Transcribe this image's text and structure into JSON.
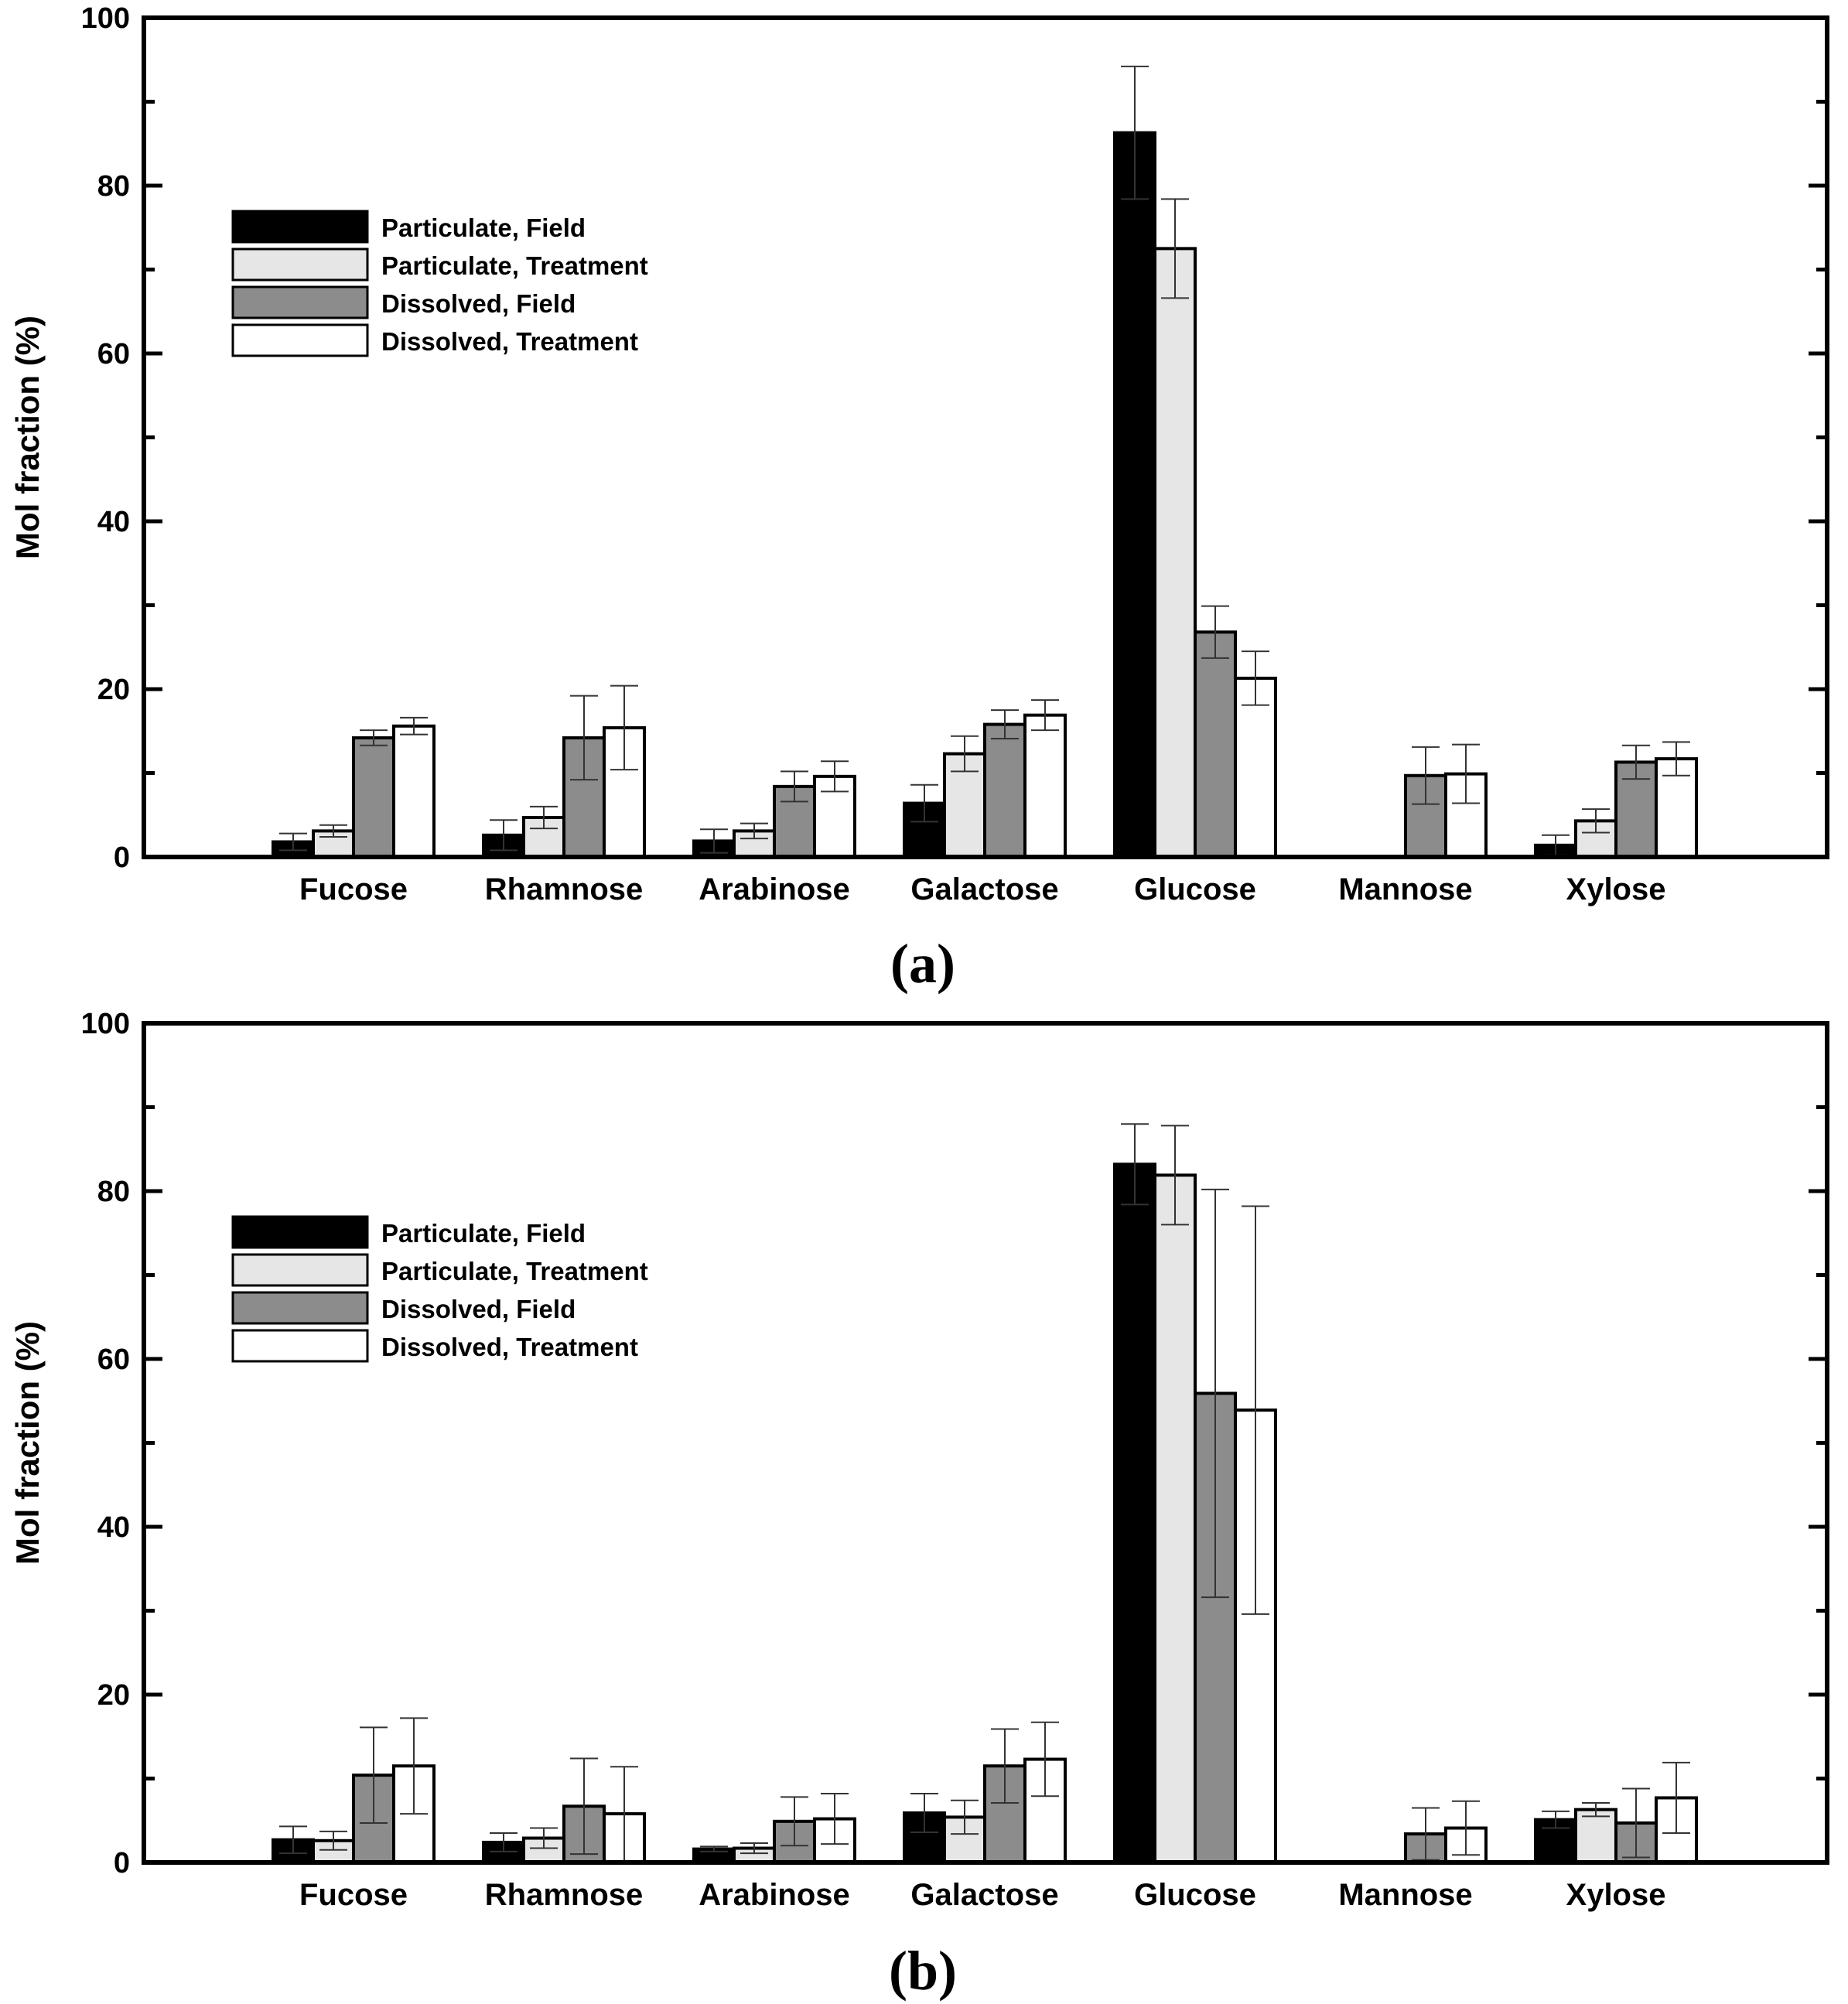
{
  "figure": {
    "legend": [
      {
        "label": "Particulate, Field",
        "color": "#000000"
      },
      {
        "label": "Particulate, Treatment",
        "color": "#e6e6e6"
      },
      {
        "label": "Dissolved, Field",
        "color": "#8c8c8c"
      },
      {
        "label": "Dissolved, Treatment",
        "color": "#ffffff"
      }
    ]
  },
  "chart_data": [
    {
      "type": "bar",
      "panel_label": "(a)",
      "ylabel": "Mol fraction (%)",
      "xlabel": "",
      "ylim": [
        0,
        100
      ],
      "yticks": [
        0,
        20,
        40,
        60,
        80,
        100
      ],
      "legend_position": "top-left",
      "categories": [
        "Fucose",
        "Rhamnose",
        "Arabinose",
        "Galactose",
        "Glucose",
        "Mannose",
        "Xylose"
      ],
      "series": [
        {
          "name": "Particulate, Field",
          "color": "#000000",
          "values": [
            1.8,
            2.6,
            1.9,
            6.4,
            86.3,
            0,
            1.4
          ],
          "errors": [
            1.0,
            1.8,
            1.4,
            2.2,
            7.9,
            0,
            1.2
          ]
        },
        {
          "name": "Particulate, Treatment",
          "color": "#e6e6e6",
          "values": [
            3.1,
            4.7,
            3.1,
            12.3,
            72.5,
            0,
            4.3
          ],
          "errors": [
            0.7,
            1.3,
            0.9,
            2.1,
            5.9,
            0,
            1.4
          ]
        },
        {
          "name": "Dissolved, Field",
          "color": "#8c8c8c",
          "values": [
            14.2,
            14.2,
            8.4,
            15.8,
            26.8,
            9.7,
            11.3
          ],
          "errors": [
            0.9,
            5.0,
            1.8,
            1.7,
            3.1,
            3.4,
            2.0
          ]
        },
        {
          "name": "Dissolved, Treatment",
          "color": "#ffffff",
          "values": [
            15.6,
            15.4,
            9.6,
            16.9,
            21.3,
            9.9,
            11.7
          ],
          "errors": [
            1.0,
            5.0,
            1.8,
            1.8,
            3.2,
            3.5,
            2.0
          ]
        }
      ]
    },
    {
      "type": "bar",
      "panel_label": "(b)",
      "ylabel": "Mol fraction (%)",
      "xlabel": "",
      "ylim": [
        0,
        100
      ],
      "yticks": [
        0,
        20,
        40,
        60,
        80,
        100
      ],
      "legend_position": "top-left",
      "categories": [
        "Fucose",
        "Rhamnose",
        "Arabinose",
        "Galactose",
        "Glucose",
        "Mannose",
        "Xylose"
      ],
      "series": [
        {
          "name": "Particulate, Field",
          "color": "#000000",
          "values": [
            2.7,
            2.4,
            1.6,
            5.9,
            83.2,
            0,
            5.1
          ],
          "errors": [
            1.6,
            1.1,
            0.3,
            2.3,
            4.8,
            0,
            1.0
          ]
        },
        {
          "name": "Particulate, Treatment",
          "color": "#e6e6e6",
          "values": [
            2.6,
            2.9,
            1.7,
            5.4,
            81.9,
            0,
            6.3
          ],
          "errors": [
            1.1,
            1.2,
            0.6,
            2.0,
            5.9,
            0,
            0.8
          ]
        },
        {
          "name": "Dissolved, Field",
          "color": "#8c8c8c",
          "values": [
            10.4,
            6.7,
            4.9,
            11.5,
            55.9,
            3.4,
            4.7
          ],
          "errors": [
            5.7,
            5.7,
            2.9,
            4.4,
            24.3,
            3.1,
            4.1
          ]
        },
        {
          "name": "Dissolved, Treatment",
          "color": "#ffffff",
          "values": [
            11.5,
            5.8,
            5.2,
            12.3,
            53.9,
            4.1,
            7.7
          ],
          "errors": [
            5.7,
            5.6,
            3.0,
            4.4,
            24.3,
            3.2,
            4.2
          ]
        }
      ]
    }
  ]
}
